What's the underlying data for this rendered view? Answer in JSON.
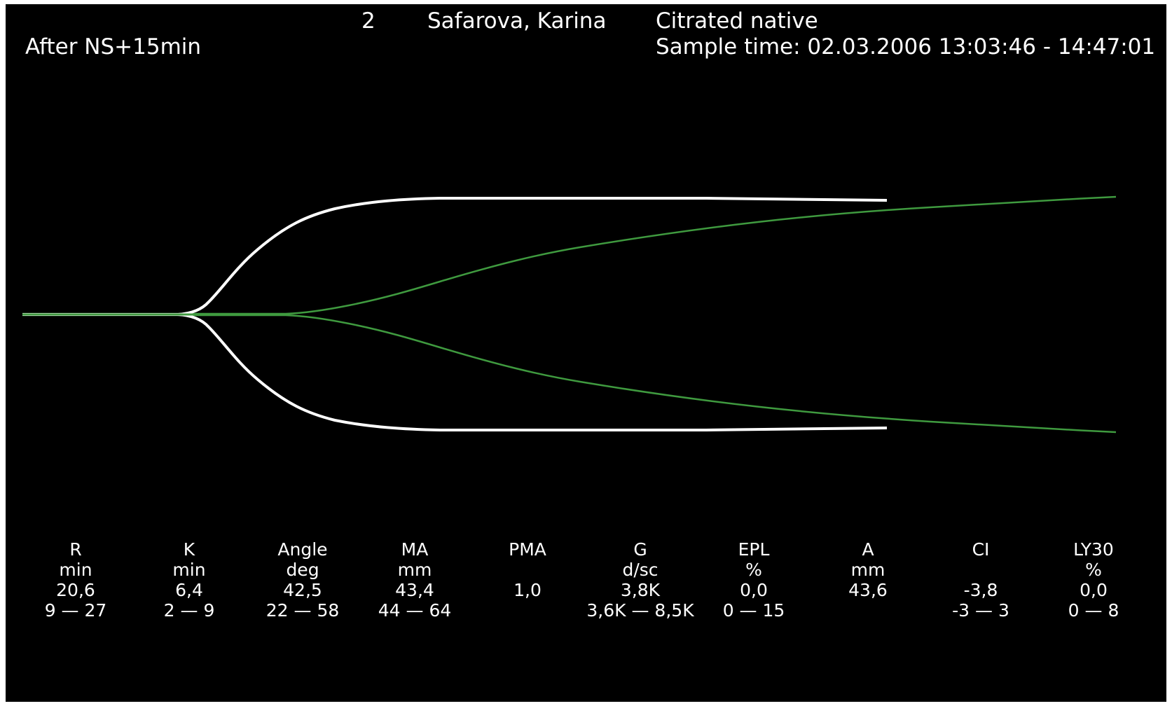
{
  "header": {
    "channel": "2",
    "patient": "Safarova, Karina",
    "sample_type": "Citrated native",
    "condition": "After NS+15min",
    "sample_time": "Sample time: 02.03.2006 13:03:46 - 14:47:01"
  },
  "colors": {
    "background": "#000000",
    "text": "#ffffff",
    "patient_trace": "#ffffff",
    "reference_trace": "#3f9a3f"
  },
  "parameters": [
    {
      "name": "R",
      "unit": "min",
      "value": "20,6",
      "range": "9 — 27"
    },
    {
      "name": "K",
      "unit": "min",
      "value": "6,4",
      "range": "2 — 9"
    },
    {
      "name": "Angle",
      "unit": "deg",
      "value": "42,5",
      "range": "22 — 58"
    },
    {
      "name": "MA",
      "unit": "mm",
      "value": "43,4",
      "range": "44 — 64"
    },
    {
      "name": "PMA",
      "unit": "",
      "value": "1,0",
      "range": ""
    },
    {
      "name": "G",
      "unit": "d/sc",
      "value": "3,8K",
      "range": "3,6K — 8,5K"
    },
    {
      "name": "EPL",
      "unit": "%",
      "value": "0,0",
      "range": "0 — 15"
    },
    {
      "name": "A",
      "unit": "mm",
      "value": "43,6",
      "range": ""
    },
    {
      "name": "CI",
      "unit": "",
      "value": "-3,8",
      "range": "-3 — 3"
    },
    {
      "name": "LY30",
      "unit": "%",
      "value": "0,0",
      "range": "0 — 8"
    }
  ]
}
